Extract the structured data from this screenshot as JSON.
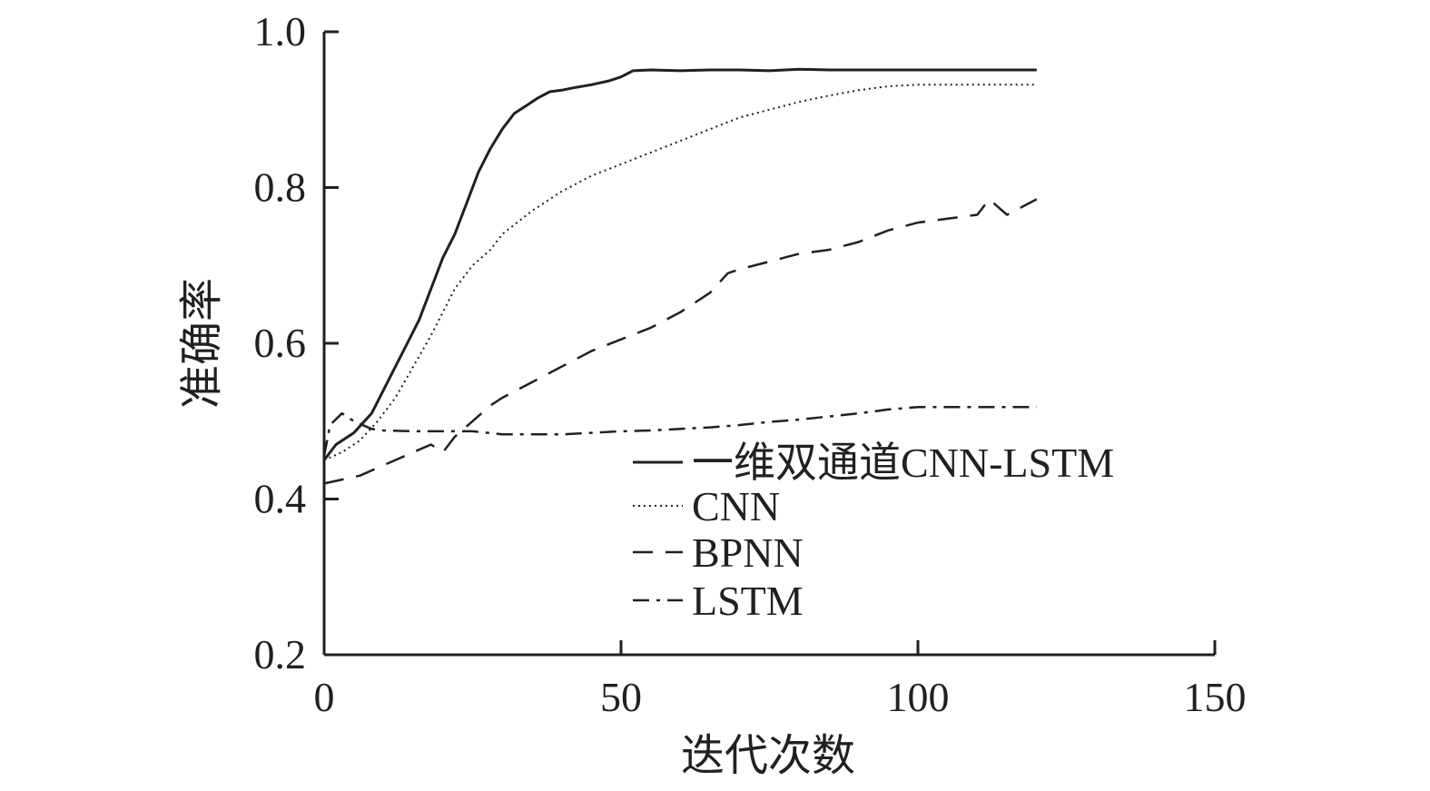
{
  "chart_data": {
    "type": "line",
    "xlabel": "迭代次数",
    "ylabel": "准确率",
    "xlim": [
      0,
      150
    ],
    "ylim": [
      0.2,
      1.0
    ],
    "x_ticks": [
      "0",
      "50",
      "100",
      "150"
    ],
    "y_ticks": [
      "0.2",
      "0.4",
      "0.6",
      "0.8",
      "1.0"
    ],
    "grid": false,
    "legend_position": "bottom-center",
    "series": [
      {
        "name": "一维双通道CNN-LSTM",
        "style": "solid",
        "x": [
          0,
          2,
          5,
          8,
          10,
          12,
          14,
          16,
          18,
          20,
          22,
          24,
          26,
          28,
          30,
          32,
          34,
          36,
          38,
          40,
          42,
          45,
          48,
          50,
          52,
          55,
          60,
          65,
          70,
          75,
          80,
          85,
          90,
          95,
          100,
          105,
          110,
          115,
          120
        ],
        "y": [
          0.45,
          0.47,
          0.485,
          0.51,
          0.54,
          0.57,
          0.6,
          0.63,
          0.67,
          0.71,
          0.74,
          0.78,
          0.82,
          0.85,
          0.875,
          0.895,
          0.905,
          0.915,
          0.923,
          0.925,
          0.928,
          0.932,
          0.937,
          0.942,
          0.95,
          0.951,
          0.95,
          0.951,
          0.951,
          0.95,
          0.952,
          0.951,
          0.951,
          0.951,
          0.951,
          0.951,
          0.951,
          0.951,
          0.951
        ]
      },
      {
        "name": "CNN",
        "style": "dotted",
        "x": [
          0,
          3,
          6,
          9,
          12,
          15,
          18,
          20,
          22,
          25,
          28,
          30,
          35,
          40,
          45,
          50,
          55,
          60,
          65,
          70,
          75,
          80,
          85,
          90,
          95,
          100,
          105,
          110,
          115,
          120
        ],
        "y": [
          0.45,
          0.46,
          0.475,
          0.5,
          0.53,
          0.57,
          0.61,
          0.64,
          0.67,
          0.7,
          0.72,
          0.74,
          0.77,
          0.795,
          0.815,
          0.83,
          0.845,
          0.86,
          0.875,
          0.89,
          0.9,
          0.91,
          0.918,
          0.925,
          0.93,
          0.932,
          0.932,
          0.932,
          0.932,
          0.932
        ]
      },
      {
        "name": "BPNN",
        "style": "dashed",
        "x": [
          0,
          3,
          6,
          9,
          12,
          15,
          18,
          20,
          22,
          25,
          28,
          30,
          35,
          40,
          45,
          50,
          55,
          60,
          65,
          68,
          70,
          75,
          80,
          85,
          90,
          95,
          100,
          105,
          110,
          112,
          115,
          120
        ],
        "y": [
          0.42,
          0.425,
          0.43,
          0.44,
          0.45,
          0.46,
          0.47,
          0.46,
          0.48,
          0.5,
          0.52,
          0.53,
          0.55,
          0.57,
          0.59,
          0.605,
          0.62,
          0.64,
          0.665,
          0.69,
          0.695,
          0.705,
          0.715,
          0.72,
          0.73,
          0.745,
          0.755,
          0.76,
          0.765,
          0.785,
          0.765,
          0.785
        ]
      },
      {
        "name": "LSTM",
        "style": "dashdot",
        "x": [
          0,
          1,
          3,
          5,
          8,
          10,
          15,
          20,
          25,
          30,
          35,
          40,
          45,
          50,
          55,
          60,
          65,
          70,
          75,
          80,
          85,
          90,
          95,
          100,
          105,
          110,
          115,
          120
        ],
        "y": [
          0.455,
          0.495,
          0.51,
          0.5,
          0.49,
          0.488,
          0.487,
          0.487,
          0.487,
          0.483,
          0.483,
          0.483,
          0.485,
          0.487,
          0.488,
          0.49,
          0.492,
          0.495,
          0.499,
          0.502,
          0.506,
          0.51,
          0.515,
          0.518,
          0.518,
          0.518,
          0.518,
          0.518
        ]
      }
    ]
  }
}
